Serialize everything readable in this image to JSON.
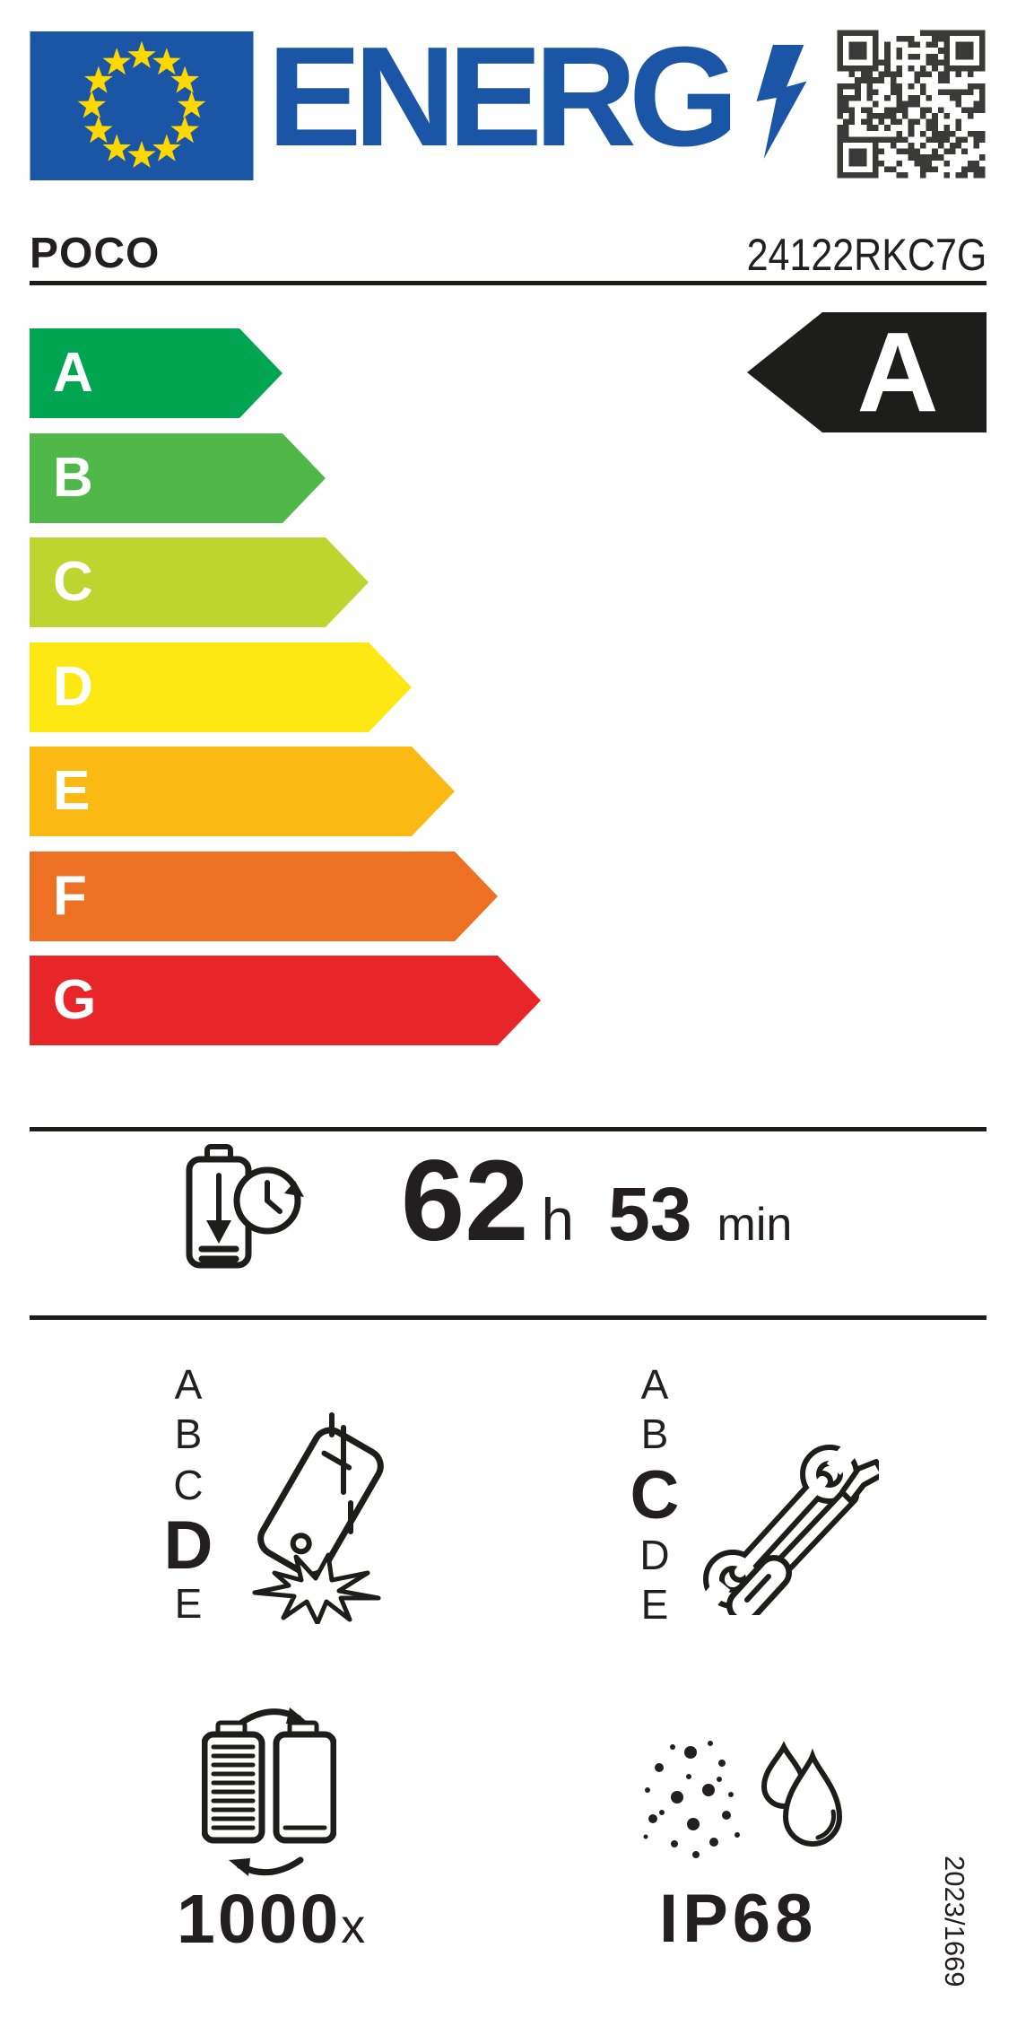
{
  "header": {
    "logo_text": "ENERG",
    "lightning_suffix": "lightning-bolt",
    "qr": "qr-code"
  },
  "product": {
    "brand": "POCO",
    "model": "24122RKC7G"
  },
  "energy_scale": {
    "selected": "A",
    "classes": [
      {
        "label": "A",
        "color": "#00a551"
      },
      {
        "label": "B",
        "color": "#4fb848"
      },
      {
        "label": "C",
        "color": "#bdd62f"
      },
      {
        "label": "D",
        "color": "#fee813"
      },
      {
        "label": "E",
        "color": "#fbb914"
      },
      {
        "label": "F",
        "color": "#ee7023"
      },
      {
        "label": "G",
        "color": "#e8262a"
      }
    ]
  },
  "battery_endurance": {
    "hours": "62",
    "hours_unit": "h",
    "minutes": "53",
    "minutes_unit": "min"
  },
  "drop_resistance": {
    "scale": [
      "A",
      "B",
      "C",
      "D",
      "E"
    ],
    "selected": "D"
  },
  "repairability": {
    "scale": [
      "A",
      "B",
      "C",
      "D",
      "E"
    ],
    "selected": "C"
  },
  "battery_cycles": {
    "value": "1000",
    "unit": "x"
  },
  "ip_rating": {
    "value": "IP68"
  },
  "regulation": "2023/1669",
  "colors": {
    "accent_blue": "#1a56a5",
    "star_yellow": "#ffd800",
    "ink": "#1d1d1b",
    "text": "#231f20"
  }
}
